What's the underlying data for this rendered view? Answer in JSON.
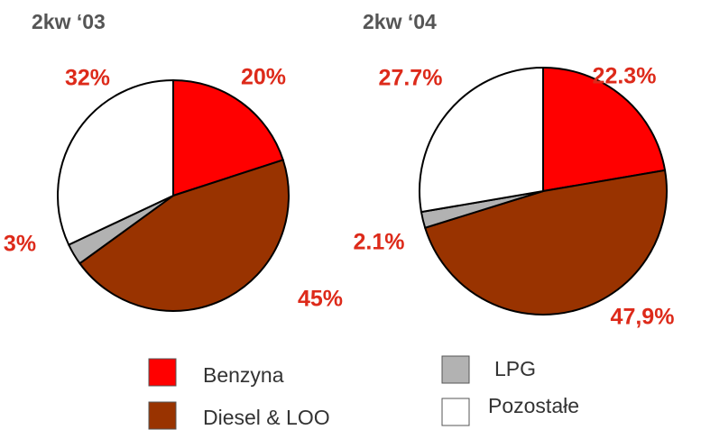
{
  "chart_data": [
    {
      "type": "pie",
      "title": "2kw ‘03",
      "categories": [
        "Benzyna",
        "Diesel & LOO",
        "LPG",
        "Pozostałe"
      ],
      "values": [
        20,
        45,
        3,
        32
      ],
      "value_labels": [
        "20%",
        "45%",
        "3%",
        "32%"
      ],
      "colors": [
        "#ff0000",
        "#993300",
        "#b2b2b2",
        "#ffffff"
      ]
    },
    {
      "type": "pie",
      "title": "2kw ‘04",
      "categories": [
        "Benzyna",
        "Diesel & LOO",
        "LPG",
        "Pozostałe"
      ],
      "values": [
        22.3,
        47.9,
        2.1,
        27.7
      ],
      "value_labels": [
        "22.3%",
        "47,9%",
        "2.1%",
        "27.7%"
      ],
      "colors": [
        "#ff0000",
        "#993300",
        "#b2b2b2",
        "#ffffff"
      ]
    }
  ]
}
